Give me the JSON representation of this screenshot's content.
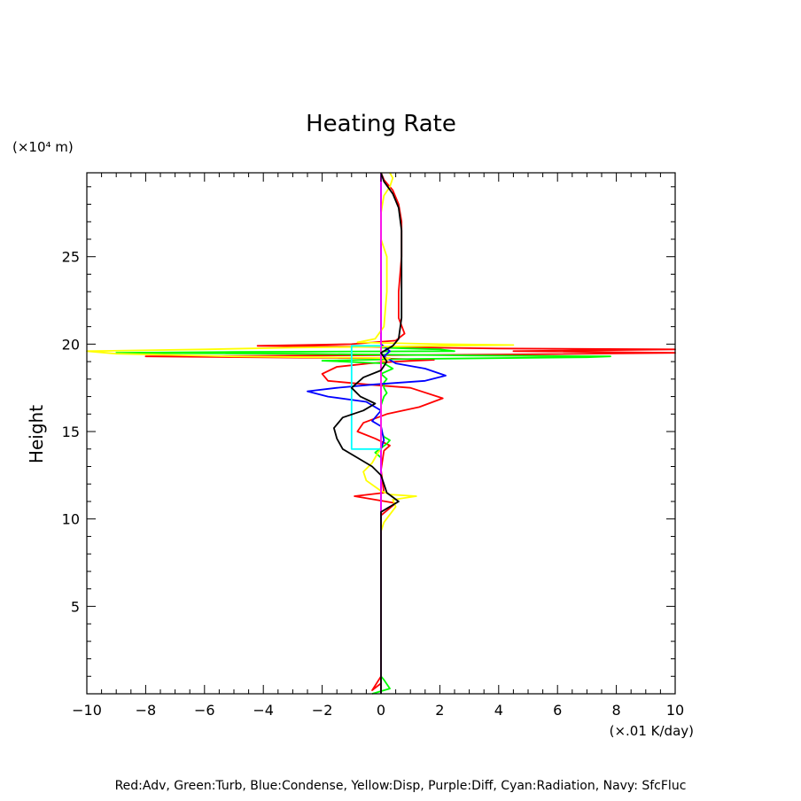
{
  "chart_data": {
    "type": "line",
    "title": "Heating Rate",
    "xlabel": "",
    "x_units": "(×.01 K/day)",
    "ylabel": "Height",
    "y_units": "(×10⁴ m)",
    "xlim": [
      -10,
      10
    ],
    "ylim": [
      0,
      29.8
    ],
    "x_ticks": [
      -10,
      -8,
      -6,
      -4,
      -2,
      0,
      2,
      4,
      6,
      8,
      10
    ],
    "y_ticks": [
      5,
      10,
      15,
      20,
      25
    ],
    "grid": false,
    "legend_text": "Red:Adv, Green:Turb, Blue:Condense, Yellow:Disp, Purple:Diff, Cyan:Radiation, Navy: SfcFluc",
    "series": [
      {
        "name": "Adv",
        "color": "#ff0000",
        "points": [
          [
            0,
            0
          ],
          [
            0,
            0.6
          ],
          [
            -0.3,
            0.2
          ],
          [
            0,
            1
          ],
          [
            0,
            10.2
          ],
          [
            0.5,
            10.9
          ],
          [
            -0.9,
            11.3
          ],
          [
            0.1,
            11.5
          ],
          [
            0,
            12.8
          ],
          [
            0.1,
            13.9
          ],
          [
            0.3,
            14.2
          ],
          [
            -0.2,
            14.6
          ],
          [
            -0.8,
            15
          ],
          [
            -0.6,
            15.5
          ],
          [
            0.2,
            16
          ],
          [
            1.3,
            16.4
          ],
          [
            2.1,
            16.9
          ],
          [
            1,
            17.5
          ],
          [
            -0.5,
            17.7
          ],
          [
            -1.8,
            17.9
          ],
          [
            -2,
            18.3
          ],
          [
            -1.5,
            18.7
          ],
          [
            -0.4,
            18.9
          ],
          [
            0.5,
            19
          ],
          [
            1.8,
            19.1
          ],
          [
            -0.5,
            19.2
          ],
          [
            -8,
            19.3
          ],
          [
            -2,
            19.35
          ],
          [
            4,
            19.4
          ],
          [
            10,
            19.5
          ],
          [
            4.5,
            19.6
          ],
          [
            10,
            19.7
          ],
          [
            4,
            19.75
          ],
          [
            -1,
            19.85
          ],
          [
            -4.2,
            19.9
          ],
          [
            -1,
            20
          ],
          [
            0.5,
            20.2
          ],
          [
            0.8,
            20.6
          ],
          [
            0.6,
            21.5
          ],
          [
            0.6,
            23
          ],
          [
            0.7,
            25
          ],
          [
            0.7,
            27
          ],
          [
            0.6,
            28
          ],
          [
            0.4,
            28.8
          ],
          [
            0.1,
            29.4
          ],
          [
            0,
            29.8
          ]
        ]
      },
      {
        "name": "Turb",
        "color": "#00ff00",
        "points": [
          [
            -0.3,
            0
          ],
          [
            0.3,
            0.3
          ],
          [
            0.1,
            0.8
          ],
          [
            0,
            1
          ],
          [
            0,
            13.5
          ],
          [
            -0.2,
            13.8
          ],
          [
            0.2,
            14.3
          ],
          [
            0.3,
            14.5
          ],
          [
            0.1,
            14.7
          ],
          [
            0,
            15
          ],
          [
            0,
            16.5
          ],
          [
            0.1,
            17
          ],
          [
            0.2,
            17.2
          ],
          [
            0.1,
            17.5
          ],
          [
            0.1,
            17.8
          ],
          [
            0.2,
            18
          ],
          [
            0,
            18.3
          ],
          [
            0.4,
            18.6
          ],
          [
            0.1,
            18.9
          ],
          [
            -2,
            19.05
          ],
          [
            1,
            19.15
          ],
          [
            7,
            19.25
          ],
          [
            7.8,
            19.3
          ],
          [
            3,
            19.35
          ],
          [
            -3,
            19.45
          ],
          [
            -9,
            19.5
          ],
          [
            -5,
            19.55
          ],
          [
            2.5,
            19.6
          ],
          [
            2,
            19.7
          ],
          [
            0,
            19.8
          ],
          [
            0,
            29.8
          ]
        ]
      },
      {
        "name": "Condense",
        "color": "#0000ff",
        "points": [
          [
            0,
            0
          ],
          [
            0,
            14
          ],
          [
            0.1,
            14.5
          ],
          [
            0,
            15.3
          ],
          [
            -0.3,
            15.6
          ],
          [
            0,
            16.2
          ],
          [
            -0.5,
            16.7
          ],
          [
            -1.8,
            17
          ],
          [
            -2.5,
            17.3
          ],
          [
            -1.5,
            17.5
          ],
          [
            -0.2,
            17.7
          ],
          [
            1.5,
            17.9
          ],
          [
            2.2,
            18.2
          ],
          [
            1.5,
            18.6
          ],
          [
            0.5,
            18.9
          ],
          [
            0.1,
            19.3
          ],
          [
            0.3,
            19.6
          ],
          [
            0,
            20
          ],
          [
            0,
            29.8
          ]
        ]
      },
      {
        "name": "Disp",
        "color": "#ffff00",
        "points": [
          [
            0,
            0
          ],
          [
            0,
            9.3
          ],
          [
            0.1,
            9.8
          ],
          [
            0.5,
            10.7
          ],
          [
            0.4,
            11.1
          ],
          [
            1.2,
            11.3
          ],
          [
            0.3,
            11.4
          ],
          [
            0,
            11.6
          ],
          [
            -0.5,
            12.2
          ],
          [
            -0.6,
            12.7
          ],
          [
            -0.3,
            13.2
          ],
          [
            -0.1,
            13.8
          ],
          [
            0,
            14
          ],
          [
            0,
            19
          ],
          [
            0.3,
            19.2
          ],
          [
            -5,
            19.3
          ],
          [
            -9,
            19.45
          ],
          [
            -10,
            19.6
          ],
          [
            -6,
            19.7
          ],
          [
            -3,
            19.8
          ],
          [
            0,
            19.85
          ],
          [
            2,
            19.9
          ],
          [
            4.5,
            19.95
          ],
          [
            2,
            20
          ],
          [
            -0.8,
            20.1
          ],
          [
            -0.2,
            20.3
          ],
          [
            0.1,
            21
          ],
          [
            0.2,
            23
          ],
          [
            0.2,
            25
          ],
          [
            0,
            26
          ],
          [
            0,
            27.5
          ],
          [
            0.1,
            28.5
          ],
          [
            0.3,
            29
          ],
          [
            0.4,
            29.5
          ],
          [
            0.3,
            29.8
          ]
        ]
      },
      {
        "name": "Diff",
        "color": "#ff00ff",
        "points": [
          [
            0,
            0
          ],
          [
            0,
            29.8
          ]
        ]
      },
      {
        "name": "Radiation",
        "color": "#00ffff",
        "points": [
          [
            0,
            14
          ],
          [
            -1,
            14
          ],
          [
            -1,
            19.9
          ],
          [
            0,
            19.9
          ]
        ]
      },
      {
        "name": "SfcFluc",
        "color": "#000000",
        "points": [
          [
            0,
            0
          ],
          [
            0,
            10.4
          ],
          [
            0.4,
            10.8
          ],
          [
            0.6,
            11
          ],
          [
            0.2,
            11.5
          ],
          [
            0,
            12.5
          ],
          [
            -0.3,
            13
          ],
          [
            -0.8,
            13.5
          ],
          [
            -1.3,
            14
          ],
          [
            -1.5,
            14.6
          ],
          [
            -1.6,
            15.2
          ],
          [
            -1.3,
            15.8
          ],
          [
            -0.6,
            16.2
          ],
          [
            -0.2,
            16.6
          ],
          [
            -0.7,
            17
          ],
          [
            -1,
            17.5
          ],
          [
            -0.6,
            18.1
          ],
          [
            0,
            18.5
          ],
          [
            0.2,
            19
          ],
          [
            0,
            19.5
          ],
          [
            0.4,
            19.9
          ],
          [
            0.6,
            20.3
          ],
          [
            0.7,
            21.5
          ],
          [
            0.7,
            23
          ],
          [
            0.7,
            25
          ],
          [
            0.7,
            26.5
          ],
          [
            0.6,
            27.8
          ],
          [
            0.4,
            28.6
          ],
          [
            0.1,
            29.3
          ],
          [
            0,
            29.8
          ]
        ]
      }
    ]
  }
}
